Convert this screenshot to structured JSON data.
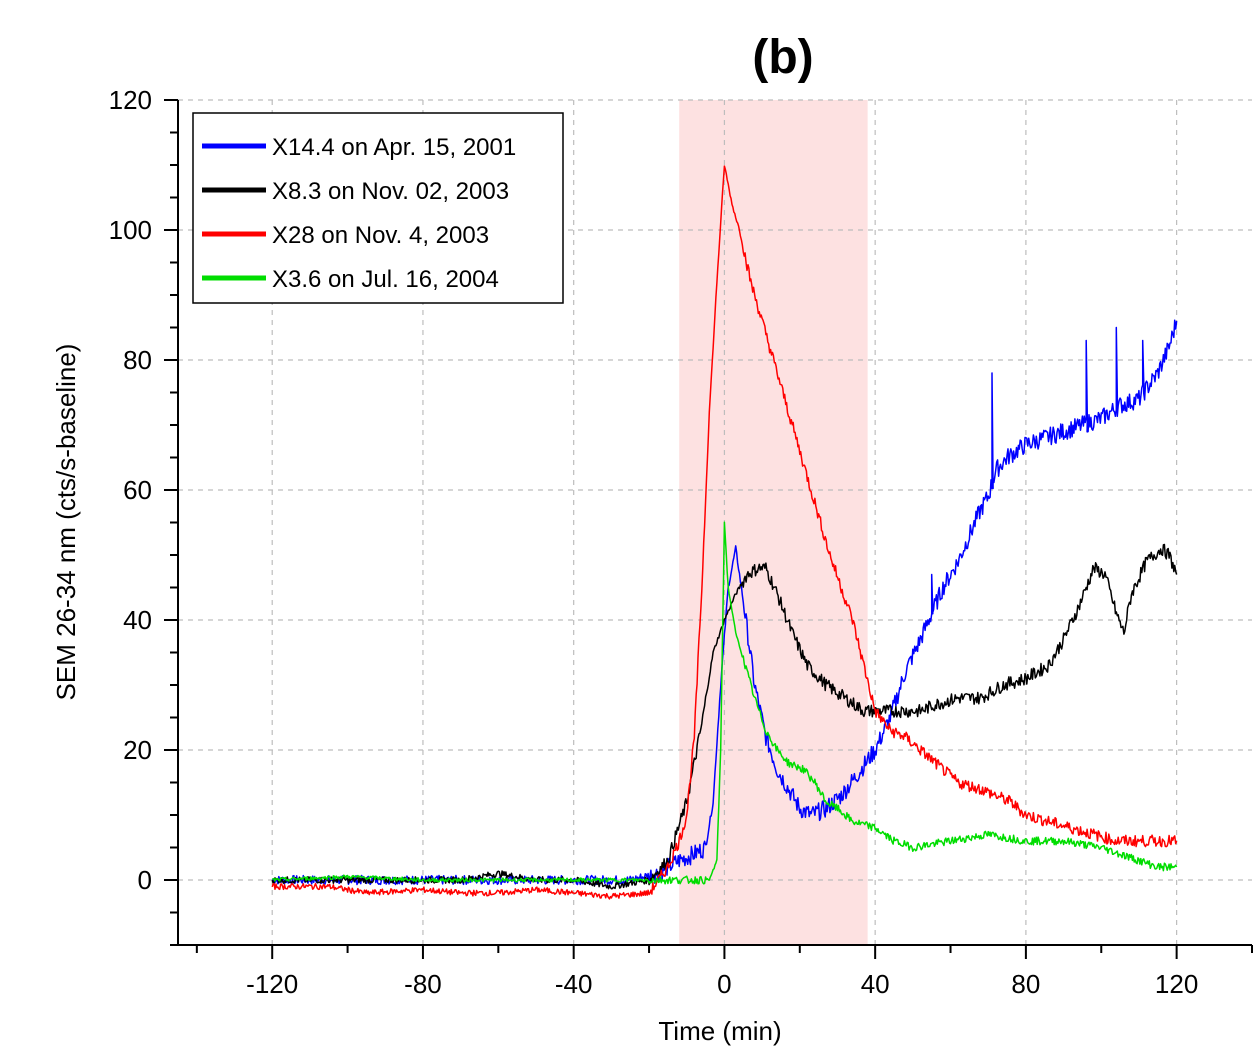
{
  "chart_data": {
    "type": "line",
    "title": "(b)",
    "xlabel": "Time (min)",
    "ylabel": "SEM 26-34 nm (cts/s-baseline)",
    "xlim": [
      -145,
      140
    ],
    "ylim": [
      -10,
      120
    ],
    "x_ticks": [
      -120,
      -80,
      -40,
      0,
      40,
      80,
      120
    ],
    "y_ticks": [
      0,
      20,
      40,
      60,
      80,
      100,
      120
    ],
    "grid": true,
    "legend_position": "top-left",
    "highlight_band": {
      "x_range": [
        -12,
        38
      ],
      "color": "#fde1e1"
    },
    "series": [
      {
        "name": "X14.4 on Apr. 15, 2001",
        "color": "#0000ff",
        "points": [
          [
            -120,
            0
          ],
          [
            -100,
            0
          ],
          [
            -80,
            0
          ],
          [
            -60,
            0
          ],
          [
            -40,
            0
          ],
          [
            -25,
            0
          ],
          [
            -18,
            1
          ],
          [
            -12,
            3
          ],
          [
            -8,
            4
          ],
          [
            -5,
            5
          ],
          [
            -3,
            12
          ],
          [
            -1,
            30
          ],
          [
            1,
            45
          ],
          [
            3,
            51
          ],
          [
            5,
            43
          ],
          [
            8,
            30
          ],
          [
            11,
            22
          ],
          [
            14,
            17
          ],
          [
            17,
            14
          ],
          [
            20,
            11
          ],
          [
            23,
            10
          ],
          [
            27,
            11
          ],
          [
            31,
            13
          ],
          [
            35,
            16
          ],
          [
            40,
            20
          ],
          [
            44,
            25
          ],
          [
            48,
            32
          ],
          [
            52,
            37
          ],
          [
            55,
            41
          ],
          [
            58,
            45
          ],
          [
            62,
            49
          ],
          [
            65,
            53
          ],
          [
            68,
            57
          ],
          [
            70,
            59
          ],
          [
            72,
            63
          ],
          [
            75,
            65
          ],
          [
            80,
            67
          ],
          [
            85,
            68
          ],
          [
            90,
            69
          ],
          [
            95,
            70
          ],
          [
            100,
            71
          ],
          [
            105,
            73
          ],
          [
            110,
            74
          ],
          [
            115,
            78
          ],
          [
            118,
            82
          ],
          [
            120,
            86
          ]
        ],
        "spikes": [
          [
            55,
            47
          ],
          [
            71,
            78
          ],
          [
            96,
            83
          ],
          [
            104,
            85
          ],
          [
            111,
            83
          ]
        ]
      },
      {
        "name": "X8.3 on Nov. 02, 2003",
        "color": "#000000",
        "points": [
          [
            -120,
            0
          ],
          [
            -105,
            0
          ],
          [
            -90,
            0
          ],
          [
            -70,
            0
          ],
          [
            -60,
            1
          ],
          [
            -50,
            0
          ],
          [
            -40,
            0
          ],
          [
            -30,
            -1
          ],
          [
            -20,
            0
          ],
          [
            -15,
            3
          ],
          [
            -10,
            12
          ],
          [
            -6,
            24
          ],
          [
            -3,
            35
          ],
          [
            0,
            40
          ],
          [
            3,
            44
          ],
          [
            6,
            47
          ],
          [
            9,
            48
          ],
          [
            11,
            48
          ],
          [
            14,
            44
          ],
          [
            18,
            38
          ],
          [
            22,
            33
          ],
          [
            27,
            30
          ],
          [
            32,
            28
          ],
          [
            37,
            26
          ],
          [
            42,
            26
          ],
          [
            48,
            26
          ],
          [
            52,
            26
          ],
          [
            56,
            27
          ],
          [
            62,
            28
          ],
          [
            68,
            28
          ],
          [
            74,
            30
          ],
          [
            80,
            31
          ],
          [
            86,
            33
          ],
          [
            90,
            37
          ],
          [
            94,
            42
          ],
          [
            98,
            48
          ],
          [
            101,
            47
          ],
          [
            104,
            41
          ],
          [
            106,
            38
          ],
          [
            108,
            44
          ],
          [
            112,
            49
          ],
          [
            116,
            51
          ],
          [
            118,
            50
          ],
          [
            120,
            47
          ]
        ]
      },
      {
        "name": "X28 on Nov. 4, 2003",
        "color": "#ff0000",
        "points": [
          [
            -120,
            -1
          ],
          [
            -105,
            -1
          ],
          [
            -95,
            -2
          ],
          [
            -80,
            -1.5
          ],
          [
            -70,
            -2
          ],
          [
            -60,
            -2
          ],
          [
            -50,
            -1.5
          ],
          [
            -40,
            -2
          ],
          [
            -30,
            -2.5
          ],
          [
            -20,
            -2
          ],
          [
            -15,
            2
          ],
          [
            -12,
            6
          ],
          [
            -10,
            10
          ],
          [
            -8,
            22
          ],
          [
            -6,
            45
          ],
          [
            -4,
            72
          ],
          [
            -2,
            92
          ],
          [
            0,
            110
          ],
          [
            2,
            104
          ],
          [
            4,
            100
          ],
          [
            7,
            92
          ],
          [
            10,
            86
          ],
          [
            13,
            80
          ],
          [
            16,
            74
          ],
          [
            19,
            68
          ],
          [
            22,
            62
          ],
          [
            25,
            56
          ],
          [
            28,
            50
          ],
          [
            31,
            45
          ],
          [
            34,
            40
          ],
          [
            37,
            33
          ],
          [
            40,
            26
          ],
          [
            44,
            23
          ],
          [
            48,
            22
          ],
          [
            52,
            20
          ],
          [
            56,
            18
          ],
          [
            62,
            15
          ],
          [
            68,
            14
          ],
          [
            72,
            13
          ],
          [
            76,
            12
          ],
          [
            80,
            10
          ],
          [
            86,
            9
          ],
          [
            92,
            8
          ],
          [
            98,
            7
          ],
          [
            104,
            6
          ],
          [
            112,
            6
          ],
          [
            120,
            6
          ]
        ]
      },
      {
        "name": "X3.6 on Jul. 16, 2004",
        "color": "#00dd00",
        "points": [
          [
            -120,
            0
          ],
          [
            -100,
            0.5
          ],
          [
            -80,
            0
          ],
          [
            -60,
            0
          ],
          [
            -40,
            0
          ],
          [
            -30,
            0
          ],
          [
            -20,
            0
          ],
          [
            -10,
            0
          ],
          [
            -4,
            0
          ],
          [
            -2,
            3
          ],
          [
            -1,
            20
          ],
          [
            0,
            55
          ],
          [
            1,
            45
          ],
          [
            3,
            38
          ],
          [
            5,
            34
          ],
          [
            8,
            28
          ],
          [
            11,
            23
          ],
          [
            14,
            20
          ],
          [
            17,
            18
          ],
          [
            21,
            17
          ],
          [
            24,
            15
          ],
          [
            27,
            12
          ],
          [
            30,
            11
          ],
          [
            34,
            9
          ],
          [
            40,
            8
          ],
          [
            45,
            6
          ],
          [
            50,
            5
          ],
          [
            60,
            6
          ],
          [
            70,
            7
          ],
          [
            80,
            6
          ],
          [
            90,
            6
          ],
          [
            100,
            5
          ],
          [
            105,
            4
          ],
          [
            110,
            3
          ],
          [
            115,
            2
          ],
          [
            120,
            2
          ]
        ]
      }
    ]
  }
}
